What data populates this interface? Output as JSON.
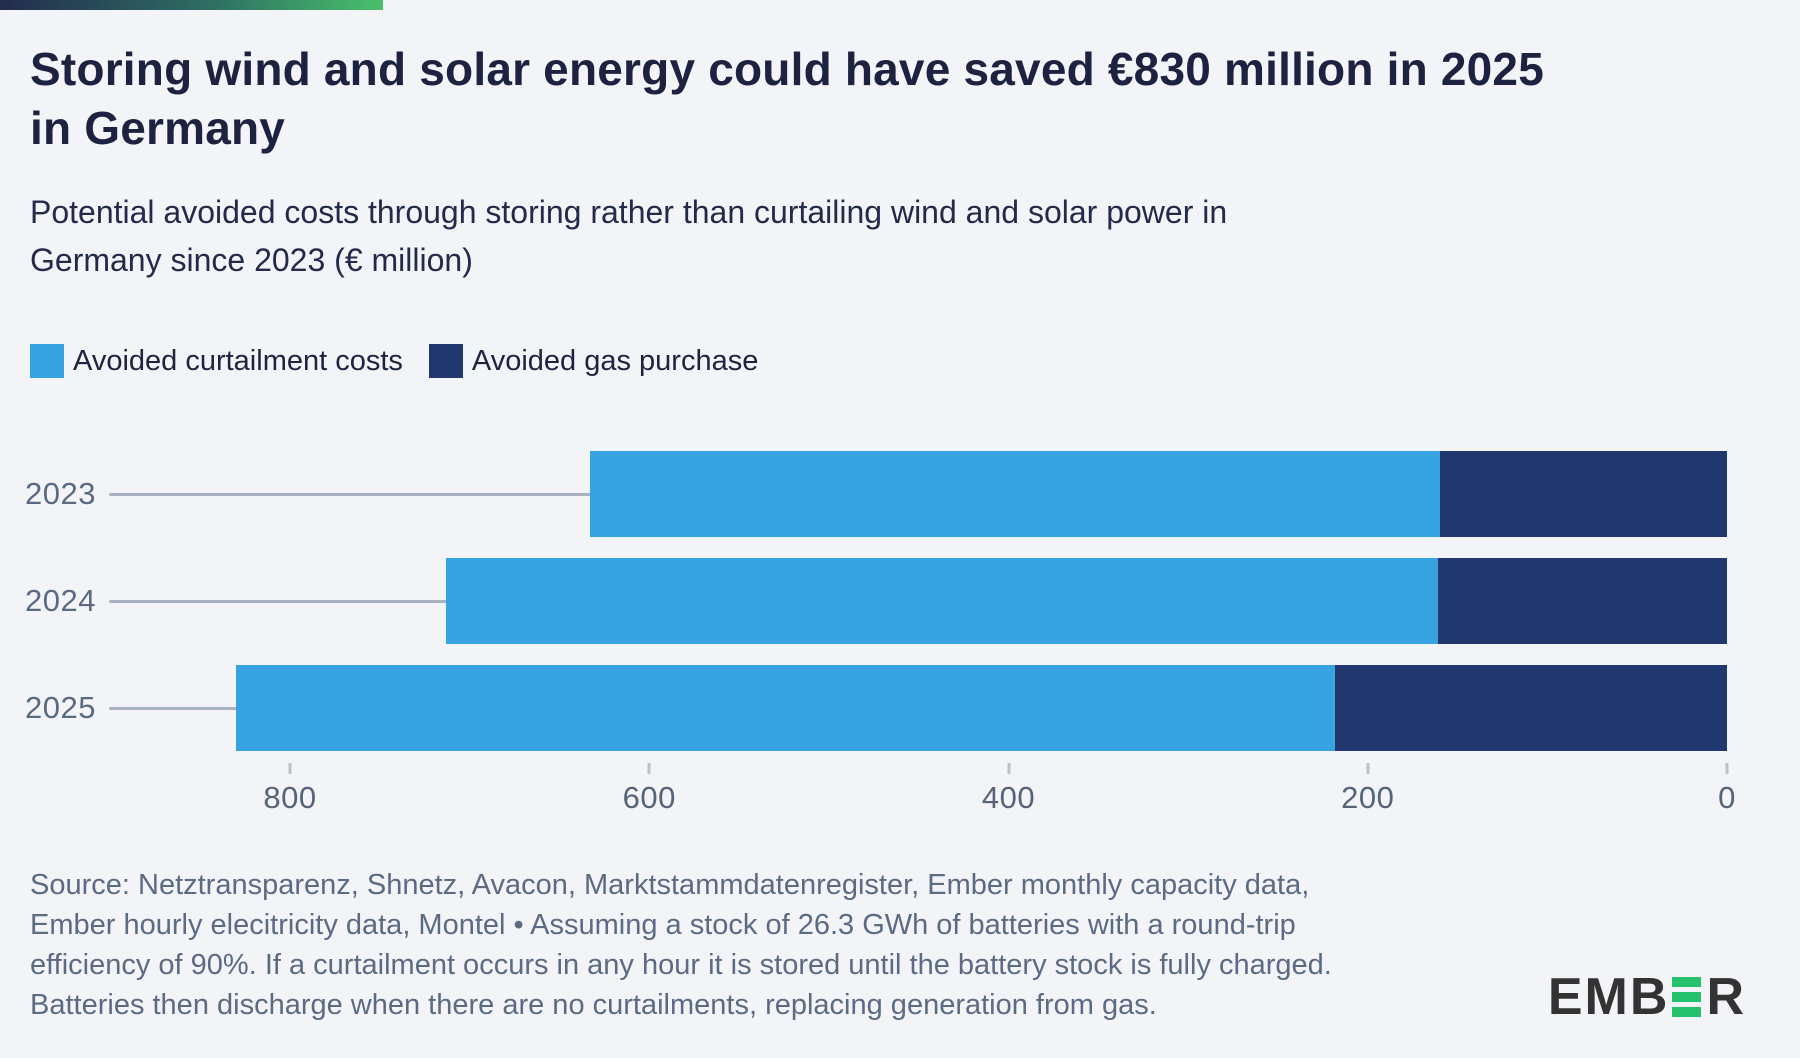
{
  "page": {
    "background": "#f2f4f8"
  },
  "header": {
    "accent_bar_colors": [
      "#232c4e",
      "#2e6e63",
      "#4abf6b"
    ],
    "title": "Storing wind and solar energy could have saved €830 million in 2025 in Germany",
    "title_lines": [
      "Storing wind and solar energy could have saved €830 million in 2025",
      "in Germany"
    ],
    "subtitle": "Potential avoided costs through storing rather than curtailing wind and solar power in Germany since 2023 (€ million)",
    "subtitle_lines": [
      "Potential avoided costs through storing rather than curtailing wind and solar power in",
      "Germany since 2023 (€ million)"
    ]
  },
  "legend": {
    "items": [
      {
        "label": "Avoided curtailment costs",
        "color": "#38a3e1"
      },
      {
        "label": "Avoided gas purchase",
        "color": "#21386e"
      }
    ]
  },
  "chart_data": {
    "type": "bar",
    "orientation": "horizontal",
    "stacked": true,
    "title": "Storing wind and solar energy could have saved €830 million in 2025 in Germany",
    "subtitle": "Potential avoided costs through storing rather than curtailing wind and solar power in Germany since 2023 (€ million)",
    "unit": "€ million",
    "categories": [
      "2023",
      "2024",
      "2025"
    ],
    "series": [
      {
        "name": "Avoided curtailment costs",
        "color": "#38a3e1",
        "values": [
          473,
          552,
          612
        ]
      },
      {
        "name": "Avoided gas purchase",
        "color": "#21386e",
        "values": [
          160,
          161,
          218
        ]
      }
    ],
    "totals": [
      633,
      713,
      830
    ],
    "x_ticks": [
      800,
      600,
      400,
      200,
      0
    ],
    "xlim": [
      0,
      800
    ],
    "axis_reversed": true,
    "grid": "row-leader-lines",
    "legend_position": "top-left"
  },
  "source": {
    "lines": [
      "Source: Netztransparenz, Shnetz, Avacon, Marktstammdatenregister, Ember monthly capacity data,",
      "Ember hourly elecitricity data, Montel • Assuming a stock of 26.3 GWh of batteries with a round-trip",
      "efficiency of 90%. If a curtailment occurs in any hour it is stored until the battery stock is fully charged.",
      "Batteries then discharge when there are no curtailments, replacing generation from gas."
    ]
  },
  "logo": {
    "prefix": "EMB",
    "green_letter": "E",
    "suffix": "R",
    "text_color": "#333333",
    "green": "#26c16d"
  }
}
